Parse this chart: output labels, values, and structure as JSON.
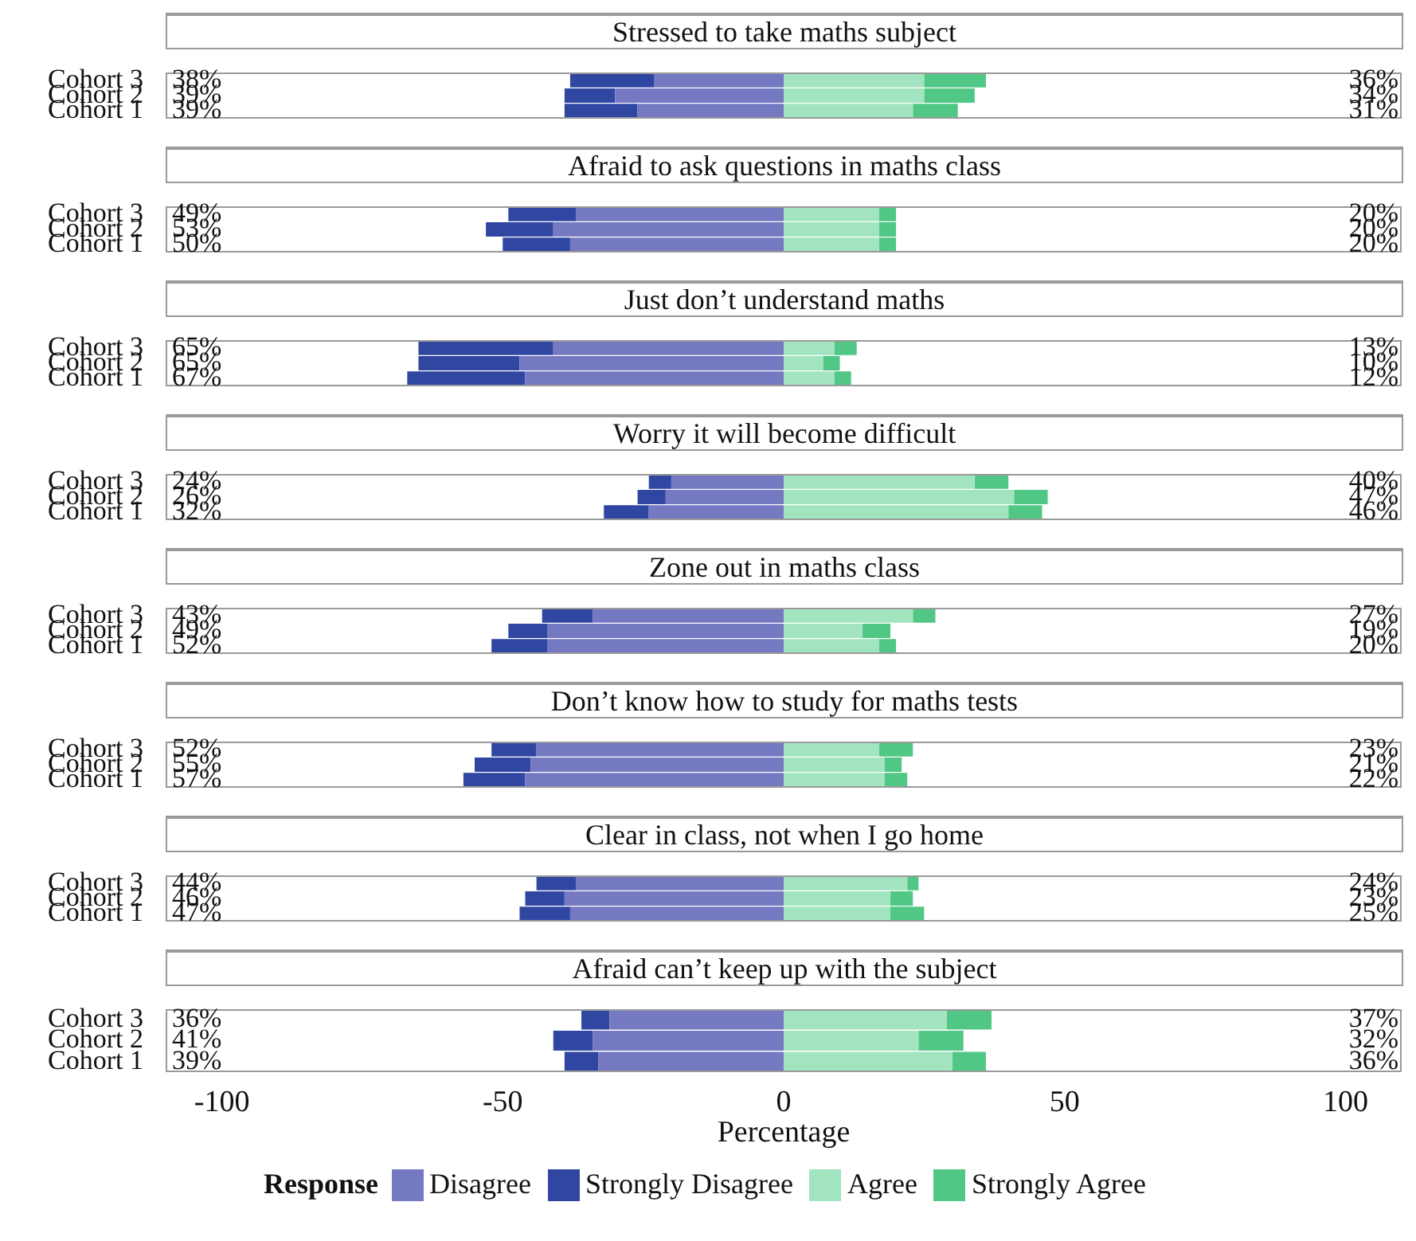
{
  "chart_data": [
    {
      "type": "bar",
      "orientation": "horizontal",
      "stacked": true,
      "title": "Stressed to take maths subject",
      "categories": [
        "Cohort 3",
        "Cohort 2",
        "Cohort 1"
      ],
      "xlim": [
        -110,
        110
      ],
      "xticks": [
        -100,
        -50,
        0,
        50,
        100
      ],
      "tick_labels": "y",
      "series": [
        {
          "color": "#7479c2",
          "values": [
            -23,
            -30,
            -26
          ]
        },
        {
          "color": "#3047a2",
          "values": [
            -15,
            -9,
            -13
          ]
        },
        {
          "color": "#a3e4c0",
          "values": [
            25,
            25,
            23
          ]
        },
        {
          "color": "#50c785",
          "values": [
            11,
            9,
            8
          ]
        }
      ],
      "annotations": [
        "38%",
        "39%",
        "39%",
        "36%",
        "34%",
        "31%"
      ]
    },
    {
      "type": "bar",
      "orientation": "horizontal",
      "stacked": true,
      "title": "Afraid to ask questions in maths class",
      "categories": [
        "Cohort 3",
        "Cohort 2",
        "Cohort 1"
      ],
      "xlim": [
        -110,
        110
      ],
      "xticks": [
        -100,
        -50,
        0,
        50,
        100
      ],
      "tick_labels": "y",
      "series": [
        {
          "color": "#7479c2",
          "values": [
            -37,
            -41,
            -38
          ]
        },
        {
          "color": "#3047a2",
          "values": [
            -12,
            -12,
            -12
          ]
        },
        {
          "color": "#a3e4c0",
          "values": [
            17,
            17,
            17
          ]
        },
        {
          "color": "#50c785",
          "values": [
            3,
            3,
            3
          ]
        }
      ],
      "annotations": [
        "49%",
        "53%",
        "50%",
        "20%",
        "20%",
        "20%"
      ]
    },
    {
      "type": "bar",
      "orientation": "horizontal",
      "stacked": true,
      "title": "Just don’t understand maths",
      "categories": [
        "Cohort 3",
        "Cohort 2",
        "Cohort 1"
      ],
      "xlim": [
        -110,
        110
      ],
      "xticks": [
        -100,
        -50,
        0,
        50,
        100
      ],
      "tick_labels": "y",
      "series": [
        {
          "color": "#7479c2",
          "values": [
            -41,
            -47,
            -46
          ]
        },
        {
          "color": "#3047a2",
          "values": [
            -24,
            -18,
            -21
          ]
        },
        {
          "color": "#a3e4c0",
          "values": [
            9,
            7,
            9
          ]
        },
        {
          "color": "#50c785",
          "values": [
            4,
            3,
            3
          ]
        }
      ],
      "annotations": [
        "65%",
        "65%",
        "67%",
        "13%",
        "10%",
        "12%"
      ]
    },
    {
      "type": "bar",
      "orientation": "horizontal",
      "stacked": true,
      "title": "Worry it will become difficult",
      "categories": [
        "Cohort 3",
        "Cohort 2",
        "Cohort 1"
      ],
      "xlim": [
        -110,
        110
      ],
      "xticks": [
        -100,
        -50,
        0,
        50,
        100
      ],
      "tick_labels": "y",
      "series": [
        {
          "color": "#7479c2",
          "values": [
            -20,
            -21,
            -24
          ]
        },
        {
          "color": "#3047a2",
          "values": [
            -4,
            -5,
            -8
          ]
        },
        {
          "color": "#a3e4c0",
          "values": [
            34,
            41,
            40
          ]
        },
        {
          "color": "#50c785",
          "values": [
            6,
            6,
            6
          ]
        }
      ],
      "annotations": [
        "24%",
        "26%",
        "32%",
        "40%",
        "47%",
        "46%"
      ]
    },
    {
      "type": "bar",
      "orientation": "horizontal",
      "stacked": true,
      "title": "Zone out in maths class",
      "categories": [
        "Cohort 3",
        "Cohort 2",
        "Cohort 1"
      ],
      "xlim": [
        -110,
        110
      ],
      "xticks": [
        -100,
        -50,
        0,
        50,
        100
      ],
      "tick_labels": "y",
      "series": [
        {
          "color": "#7479c2",
          "values": [
            -34,
            -42,
            -42
          ]
        },
        {
          "color": "#3047a2",
          "values": [
            -9,
            -7,
            -10
          ]
        },
        {
          "color": "#a3e4c0",
          "values": [
            23,
            14,
            17
          ]
        },
        {
          "color": "#50c785",
          "values": [
            4,
            5,
            3
          ]
        }
      ],
      "annotations": [
        "43%",
        "49%",
        "52%",
        "27%",
        "19%",
        "20%"
      ]
    },
    {
      "type": "bar",
      "orientation": "horizontal",
      "stacked": true,
      "title": "Don’t know how to study for maths tests",
      "categories": [
        "Cohort 3",
        "Cohort 2",
        "Cohort 1"
      ],
      "xlim": [
        -110,
        110
      ],
      "xticks": [
        -100,
        -50,
        0,
        50,
        100
      ],
      "tick_labels": "y",
      "series": [
        {
          "color": "#7479c2",
          "values": [
            -44,
            -45,
            -46
          ]
        },
        {
          "color": "#3047a2",
          "values": [
            -8,
            -10,
            -11
          ]
        },
        {
          "color": "#a3e4c0",
          "values": [
            17,
            18,
            18
          ]
        },
        {
          "color": "#50c785",
          "values": [
            6,
            3,
            4
          ]
        }
      ],
      "annotations": [
        "52%",
        "55%",
        "57%",
        "23%",
        "21%",
        "22%"
      ]
    },
    {
      "type": "bar",
      "orientation": "horizontal",
      "stacked": true,
      "title": "Clear in class, not when I go home",
      "categories": [
        "Cohort 3",
        "Cohort 2",
        "Cohort 1"
      ],
      "xlim": [
        -110,
        110
      ],
      "xticks": [
        -100,
        -50,
        0,
        50,
        100
      ],
      "tick_labels": "y",
      "series": [
        {
          "color": "#7479c2",
          "values": [
            -37,
            -39,
            -38
          ]
        },
        {
          "color": "#3047a2",
          "values": [
            -7,
            -7,
            -9
          ]
        },
        {
          "color": "#a3e4c0",
          "values": [
            22,
            19,
            19
          ]
        },
        {
          "color": "#50c785",
          "values": [
            2,
            4,
            6
          ]
        }
      ],
      "annotations": [
        "44%",
        "46%",
        "47%",
        "24%",
        "23%",
        "25%"
      ]
    },
    {
      "type": "bar",
      "orientation": "horizontal",
      "stacked": true,
      "title": "Afraid can’t keep up with the subject",
      "categories": [
        "Cohort 3",
        "Cohort 2",
        "Cohort 1"
      ],
      "xlim": [
        -110,
        110
      ],
      "xticks": [
        -100,
        -50,
        0,
        50,
        100
      ],
      "xlabel": "Percentage",
      "legend": "bottom",
      "legend_title": "Response",
      "series": [
        {
          "name": "Disagree",
          "color": "#7479c2",
          "values": [
            -31,
            -34,
            -33
          ]
        },
        {
          "name": "Strongly Disagree",
          "color": "#3047a2",
          "values": [
            -5,
            -7,
            -6
          ]
        },
        {
          "name": "Agree",
          "color": "#a3e4c0",
          "values": [
            29,
            24,
            30
          ]
        },
        {
          "name": "Strongly Agree",
          "color": "#50c785",
          "values": [
            8,
            8,
            6
          ]
        }
      ],
      "annotations": [
        "36%",
        "41%",
        "39%",
        "37%",
        "32%",
        "36%"
      ]
    }
  ]
}
